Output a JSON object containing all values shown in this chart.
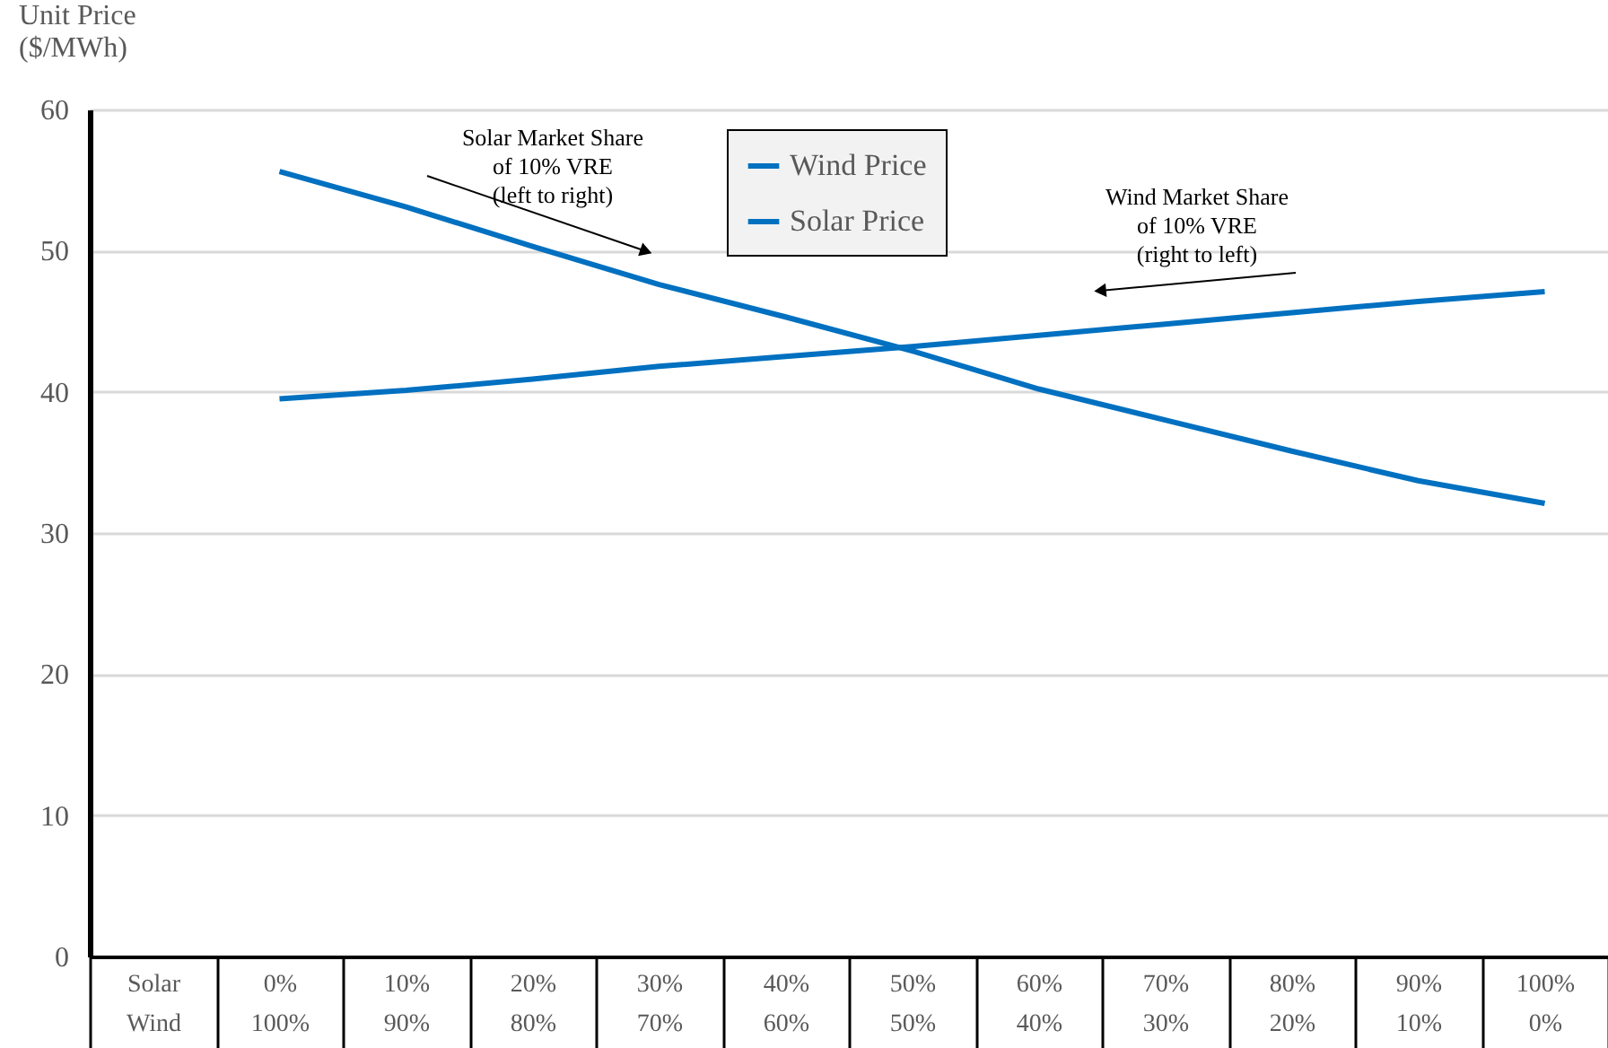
{
  "chart_data": {
    "type": "line",
    "ylabel": "Unit Price\n($/MWh)",
    "categories": [
      "Solar\nWind",
      "0%\n100%",
      "10%\n90%",
      "20%\n80%",
      "30%\n70%",
      "40%\n60%",
      "50%\n50%",
      "60%\n40%",
      "70%\n30%",
      "80%\n20%",
      "90%\n10%",
      "100%\n0%"
    ],
    "series": [
      {
        "name": "Wind Price",
        "color": "#0070c0",
        "values": [
          null,
          39.5,
          40.1,
          40.9,
          41.8,
          42.5,
          43.2,
          44.0,
          44.8,
          45.6,
          46.4,
          47.1
        ]
      },
      {
        "name": "Solar Price",
        "color": "#0070c0",
        "values": [
          null,
          55.6,
          53.1,
          50.3,
          47.6,
          45.3,
          42.9,
          40.2,
          38.0,
          35.8,
          33.7,
          32.1
        ]
      }
    ],
    "ylim": [
      0,
      60
    ],
    "yticks": [
      0,
      10,
      20,
      30,
      40,
      50,
      60
    ],
    "grid": "y",
    "legend": "top",
    "marker": "none",
    "line_style": "solid",
    "annotations": [
      "Solar Market Share\nof 10% VRE\n(left to right)",
      "Wind Market Share\nof 10% VRE\n(right to left)"
    ]
  }
}
